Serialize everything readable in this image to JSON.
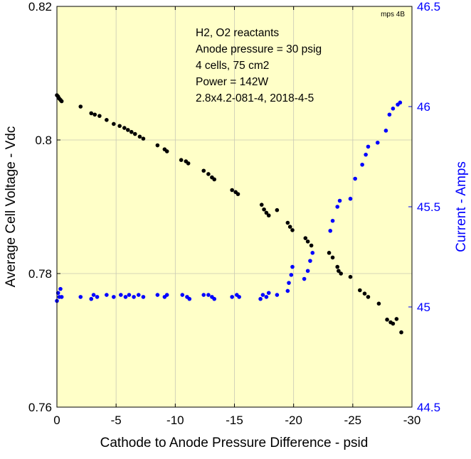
{
  "chart_data": {
    "type": "scatter",
    "corner_tag": "mps 4B",
    "xlabel": "Cathode to Anode Pressure Difference  - psid",
    "ylabel_left": "Average Cell Voltage - Vdc",
    "ylabel_right": "Current - Amps",
    "xlim": [
      0,
      -30
    ],
    "ylim_left": [
      0.76,
      0.82
    ],
    "ylim_right": [
      44.5,
      46.5
    ],
    "x_ticks": [
      0,
      -5,
      -10,
      -15,
      -20,
      -25,
      -30
    ],
    "x_tick_labels": [
      "0",
      "-5",
      "-10",
      "-15",
      "-20",
      "-25",
      "-30"
    ],
    "y_ticks_left": [
      0.76,
      0.78,
      0.8,
      0.82
    ],
    "y_tick_labels_left": [
      "0.76",
      "0.78",
      "0.8",
      "0.82"
    ],
    "y_ticks_right": [
      44.5,
      45,
      45.5,
      46,
      46.5
    ],
    "y_tick_labels_right": [
      "44.5",
      "45",
      "45.5",
      "46",
      "46.5"
    ],
    "grid": true,
    "colors": {
      "plot_background": "#ffffc8",
      "voltage_series": "#000000",
      "current_series": "#0000ff",
      "grid": "#c8c8b4"
    },
    "annotations": [
      "H2, O2 reactants",
      "Anode pressure = 30 psig",
      "4 cells, 75 cm2",
      "Power = 142W",
      "2.8x4.2-081-4,  2018-4-5"
    ],
    "series": [
      {
        "axis": "left",
        "color": "#000000",
        "points": [
          [
            0.0,
            0.8067
          ],
          [
            -0.1,
            0.8065
          ],
          [
            -0.2,
            0.8062
          ],
          [
            -0.3,
            0.806
          ],
          [
            -0.4,
            0.8058
          ],
          [
            -2.0,
            0.805
          ],
          [
            -2.9,
            0.804
          ],
          [
            -3.2,
            0.8038
          ],
          [
            -3.6,
            0.8036
          ],
          [
            -4.2,
            0.803
          ],
          [
            -4.8,
            0.8024
          ],
          [
            -5.3,
            0.8021
          ],
          [
            -5.7,
            0.8018
          ],
          [
            -6.0,
            0.8015
          ],
          [
            -6.3,
            0.8012
          ],
          [
            -6.6,
            0.8009
          ],
          [
            -7.0,
            0.8005
          ],
          [
            -7.3,
            0.8002
          ],
          [
            -8.5,
            0.7992
          ],
          [
            -9.1,
            0.7986
          ],
          [
            -9.3,
            0.7983
          ],
          [
            -10.5,
            0.797
          ],
          [
            -10.9,
            0.7968
          ],
          [
            -11.1,
            0.7965
          ],
          [
            -12.4,
            0.7954
          ],
          [
            -12.8,
            0.7949
          ],
          [
            -13.1,
            0.7944
          ],
          [
            -13.3,
            0.7941
          ],
          [
            -14.8,
            0.7925
          ],
          [
            -15.1,
            0.7922
          ],
          [
            -15.3,
            0.7919
          ],
          [
            -17.3,
            0.7903
          ],
          [
            -17.5,
            0.7896
          ],
          [
            -17.7,
            0.7891
          ],
          [
            -17.9,
            0.7887
          ],
          [
            -18.6,
            0.7895
          ],
          [
            -19.5,
            0.7876
          ],
          [
            -19.7,
            0.787
          ],
          [
            -19.9,
            0.7865
          ],
          [
            -21.0,
            0.7853
          ],
          [
            -21.2,
            0.7848
          ],
          [
            -21.5,
            0.7842
          ],
          [
            -23.0,
            0.7831
          ],
          [
            -23.3,
            0.7824
          ],
          [
            -23.7,
            0.781
          ],
          [
            -23.8,
            0.7804
          ],
          [
            -24.0,
            0.78
          ],
          [
            -24.8,
            0.7795
          ],
          [
            -25.6,
            0.7775
          ],
          [
            -26.0,
            0.777
          ],
          [
            -26.3,
            0.7765
          ],
          [
            -27.2,
            0.7755
          ],
          [
            -27.9,
            0.7731
          ],
          [
            -28.2,
            0.7727
          ],
          [
            -28.4,
            0.7725
          ],
          [
            -28.7,
            0.7732
          ],
          [
            -29.1,
            0.7712
          ]
        ]
      },
      {
        "axis": "right",
        "color": "#0000ff",
        "points": [
          [
            0.0,
            45.03
          ],
          [
            -0.1,
            45.07
          ],
          [
            -0.2,
            45.05
          ],
          [
            -0.3,
            45.09
          ],
          [
            -0.4,
            45.05
          ],
          [
            -2.0,
            45.05
          ],
          [
            -2.9,
            45.04
          ],
          [
            -3.1,
            45.06
          ],
          [
            -3.4,
            45.05
          ],
          [
            -4.2,
            45.06
          ],
          [
            -4.8,
            45.05
          ],
          [
            -5.4,
            45.06
          ],
          [
            -5.8,
            45.05
          ],
          [
            -6.1,
            45.06
          ],
          [
            -6.5,
            45.05
          ],
          [
            -6.9,
            45.06
          ],
          [
            -7.3,
            45.05
          ],
          [
            -8.5,
            45.06
          ],
          [
            -9.1,
            45.05
          ],
          [
            -9.3,
            45.06
          ],
          [
            -10.6,
            45.06
          ],
          [
            -11.0,
            45.05
          ],
          [
            -11.2,
            45.04
          ],
          [
            -12.4,
            45.06
          ],
          [
            -12.8,
            45.06
          ],
          [
            -13.1,
            45.05
          ],
          [
            -13.3,
            45.04
          ],
          [
            -14.8,
            45.05
          ],
          [
            -15.2,
            45.06
          ],
          [
            -15.4,
            45.05
          ],
          [
            -17.2,
            45.04
          ],
          [
            -17.4,
            45.06
          ],
          [
            -17.7,
            45.05
          ],
          [
            -17.9,
            45.07
          ],
          [
            -18.6,
            45.06
          ],
          [
            -19.5,
            45.08
          ],
          [
            -19.6,
            45.12
          ],
          [
            -19.8,
            45.16
          ],
          [
            -19.9,
            45.2
          ],
          [
            -20.9,
            45.14
          ],
          [
            -21.2,
            45.18
          ],
          [
            -21.4,
            45.23
          ],
          [
            -21.6,
            45.27
          ],
          [
            -23.1,
            45.38
          ],
          [
            -23.3,
            45.43
          ],
          [
            -23.7,
            45.5
          ],
          [
            -23.9,
            45.53
          ],
          [
            -24.8,
            45.54
          ],
          [
            -25.2,
            45.64
          ],
          [
            -25.8,
            45.71
          ],
          [
            -26.1,
            45.76
          ],
          [
            -26.3,
            45.8
          ],
          [
            -27.1,
            45.82
          ],
          [
            -27.8,
            45.88
          ],
          [
            -28.1,
            45.96
          ],
          [
            -28.4,
            45.99
          ],
          [
            -28.8,
            46.01
          ],
          [
            -29.0,
            46.02
          ]
        ]
      }
    ]
  }
}
